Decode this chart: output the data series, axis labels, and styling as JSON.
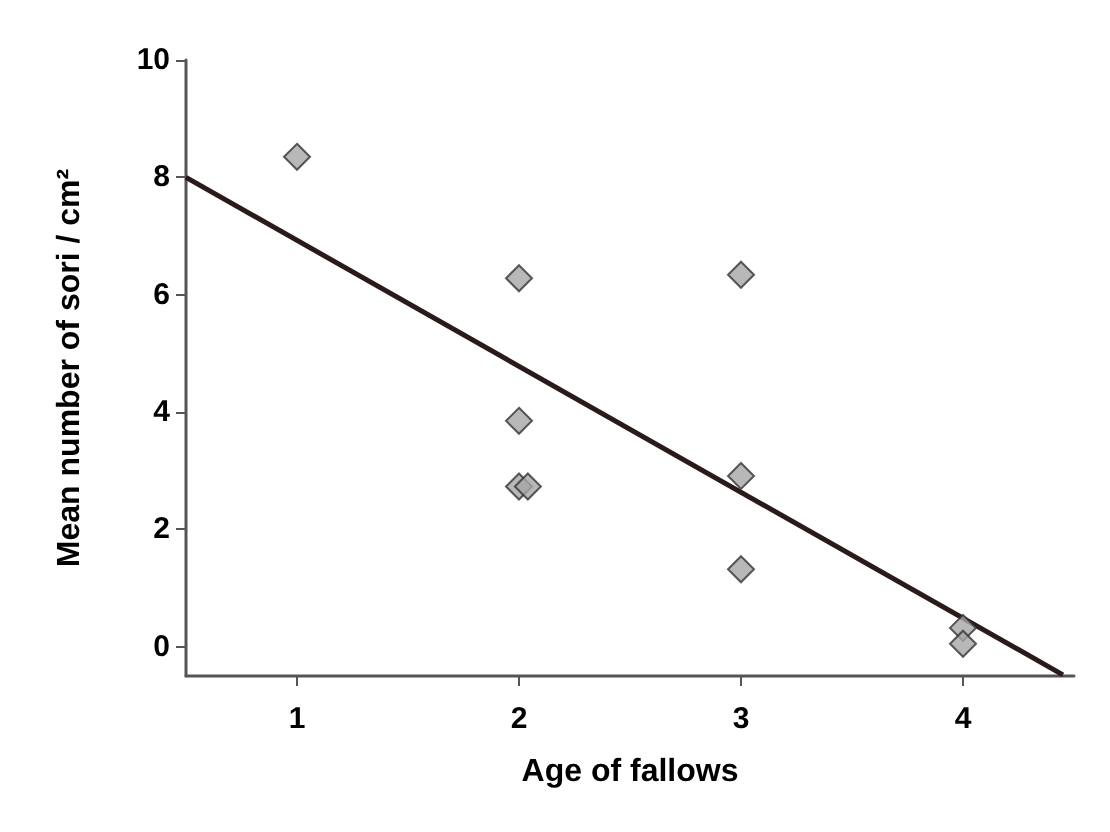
{
  "chart_data": {
    "type": "scatter",
    "xlabel": "Age of fallows",
    "ylabel": "Mean number of sori / cm²",
    "xlim": [
      0.5,
      4.5
    ],
    "xticks": [
      1,
      2,
      3,
      4
    ],
    "ylim": [
      -0.5,
      10
    ],
    "yticks": [
      0,
      2,
      4,
      6,
      8,
      10
    ],
    "grid": false,
    "marker": "diamond",
    "series": [
      {
        "color": "#a6a6a6",
        "x": [
          1,
          2,
          2,
          2,
          2.04,
          3,
          3,
          3,
          4,
          4
        ],
        "values": [
          8.35,
          6.28,
          3.85,
          2.73,
          2.73,
          6.34,
          2.91,
          1.32,
          0.32,
          0.05
        ]
      },
      {
        "type": "line",
        "color": "#2b1a1a",
        "x": [
          0.5,
          4.45
        ],
        "values": [
          8.0,
          -0.48
        ],
        "line_style": "solid",
        "marker": "none"
      }
    ]
  }
}
